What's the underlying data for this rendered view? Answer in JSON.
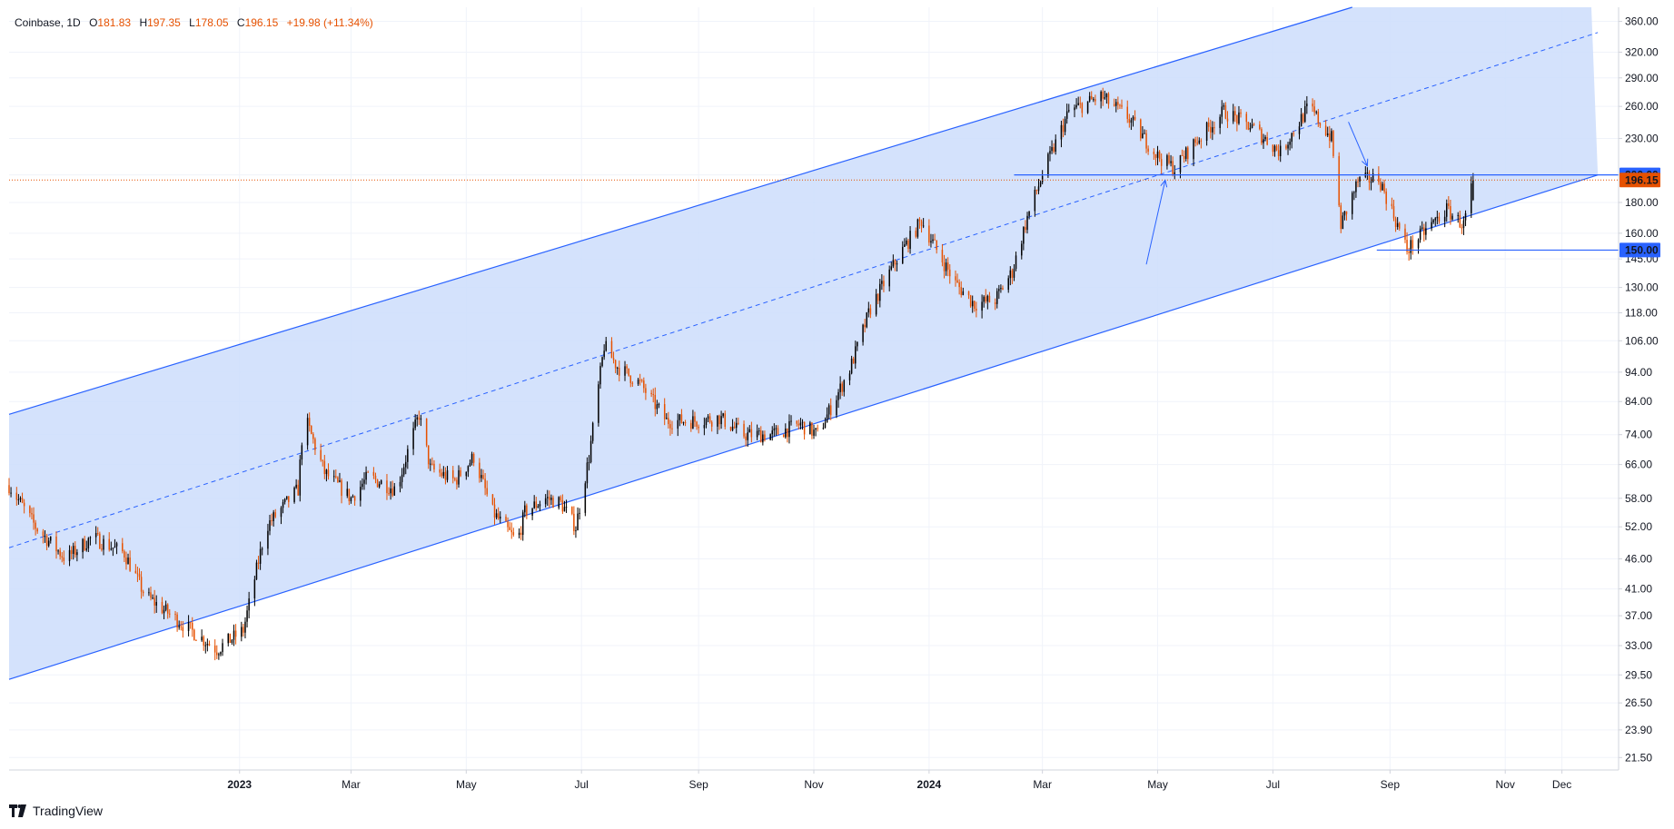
{
  "header": {
    "symbol": "Coinbase",
    "interval": "1D",
    "o_label": "O",
    "o_value": "181.83",
    "h_label": "H",
    "h_value": "197.35",
    "l_label": "L",
    "l_value": "178.05",
    "c_label": "C",
    "c_value": "196.15",
    "change": "+19.98 (+11.34%)"
  },
  "brand": {
    "name": "TradingView"
  },
  "colors": {
    "up": "#000000",
    "down": "#e65100",
    "channel_fill": "#cdddfb",
    "channel_line": "#2962ff",
    "price_line": "#e65100",
    "text": "#131722"
  },
  "chart_data": {
    "type": "candlestick",
    "scale": "log",
    "ylim": [
      20.5,
      380
    ],
    "xlim": [
      "2022-09-01",
      "2024-12-31"
    ],
    "y_ticks": [
      "360.00",
      "320.00",
      "290.00",
      "260.00",
      "230.00",
      "200.00",
      "180.00",
      "160.00",
      "145.00",
      "130.00",
      "118.00",
      "106.00",
      "94.00",
      "84.00",
      "74.00",
      "66.00",
      "58.00",
      "52.00",
      "46.00",
      "41.00",
      "37.00",
      "33.00",
      "29.50",
      "26.50",
      "23.90",
      "21.50"
    ],
    "x_ticks": [
      {
        "label": "2023",
        "date": "2023-01-01",
        "bold": true
      },
      {
        "label": "Mar",
        "date": "2023-03-01"
      },
      {
        "label": "May",
        "date": "2023-05-01"
      },
      {
        "label": "Jul",
        "date": "2023-07-01"
      },
      {
        "label": "Sep",
        "date": "2023-09-01"
      },
      {
        "label": "Nov",
        "date": "2023-11-01"
      },
      {
        "label": "2024",
        "date": "2024-01-01",
        "bold": true
      },
      {
        "label": "Mar",
        "date": "2024-03-01"
      },
      {
        "label": "May",
        "date": "2024-05-01"
      },
      {
        "label": "Jul",
        "date": "2024-07-01"
      },
      {
        "label": "Sep",
        "date": "2024-09-01"
      },
      {
        "label": "Nov",
        "date": "2024-11-01"
      },
      {
        "label": "Dec",
        "date": "2024-12-01"
      }
    ],
    "price_path": [
      [
        "2022-09-01",
        61
      ],
      [
        "2022-09-15",
        52
      ],
      [
        "2022-10-01",
        46
      ],
      [
        "2022-10-15",
        50
      ],
      [
        "2022-11-01",
        47
      ],
      [
        "2022-11-12",
        40
      ],
      [
        "2022-12-01",
        36
      ],
      [
        "2022-12-20",
        32.5
      ],
      [
        "2023-01-03",
        35
      ],
      [
        "2023-01-15",
        52
      ],
      [
        "2023-02-01",
        60
      ],
      [
        "2023-02-04",
        80
      ],
      [
        "2023-02-15",
        64
      ],
      [
        "2023-03-01",
        58
      ],
      [
        "2023-03-10",
        63
      ],
      [
        "2023-03-25",
        60
      ],
      [
        "2023-04-06",
        80
      ],
      [
        "2023-04-12",
        65
      ],
      [
        "2023-04-25",
        62
      ],
      [
        "2023-05-05",
        68
      ],
      [
        "2023-05-15",
        55
      ],
      [
        "2023-05-28",
        49
      ],
      [
        "2023-06-01",
        55
      ],
      [
        "2023-06-12",
        58
      ],
      [
        "2023-06-20",
        57
      ],
      [
        "2023-06-28",
        52
      ],
      [
        "2023-07-05",
        68
      ],
      [
        "2023-07-13",
        104
      ],
      [
        "2023-07-20",
        96
      ],
      [
        "2023-08-01",
        90
      ],
      [
        "2023-08-15",
        78
      ],
      [
        "2023-09-01",
        78
      ],
      [
        "2023-09-12",
        79
      ],
      [
        "2023-09-25",
        74
      ],
      [
        "2023-10-10",
        74
      ],
      [
        "2023-10-25",
        77
      ],
      [
        "2023-11-03",
        74
      ],
      [
        "2023-11-20",
        95
      ],
      [
        "2023-12-01",
        120
      ],
      [
        "2023-12-15",
        145
      ],
      [
        "2023-12-28",
        168
      ],
      [
        "2024-01-05",
        150
      ],
      [
        "2024-01-15",
        132
      ],
      [
        "2024-01-25",
        122
      ],
      [
        "2024-02-05",
        124
      ],
      [
        "2024-02-14",
        138
      ],
      [
        "2024-02-22",
        170
      ],
      [
        "2024-03-01",
        200
      ],
      [
        "2024-03-15",
        255
      ],
      [
        "2024-04-01",
        270
      ],
      [
        "2024-04-15",
        250
      ],
      [
        "2024-05-01",
        215
      ],
      [
        "2024-05-10",
        205
      ],
      [
        "2024-05-20",
        225
      ],
      [
        "2024-06-05",
        255
      ],
      [
        "2024-06-20",
        240
      ],
      [
        "2024-07-05",
        218
      ],
      [
        "2024-07-20",
        260
      ],
      [
        "2024-08-01",
        230
      ],
      [
        "2024-08-06",
        165
      ],
      [
        "2024-08-15",
        195
      ],
      [
        "2024-08-26",
        198
      ],
      [
        "2024-09-05",
        165
      ],
      [
        "2024-09-10",
        150
      ],
      [
        "2024-09-20",
        162
      ],
      [
        "2024-10-01",
        175
      ],
      [
        "2024-10-10",
        165
      ],
      [
        "2024-10-15",
        196.15
      ]
    ],
    "last_close": 196.15,
    "drawings": [
      {
        "type": "channel_upper",
        "from": [
          "2022-09-01",
          80
        ],
        "to": [
          "2024-08-12",
          380
        ]
      },
      {
        "type": "channel_lower",
        "from": [
          "2022-09-01",
          29
        ],
        "to": [
          "2024-12-20",
          200
        ]
      },
      {
        "type": "channel_mid",
        "from": [
          "2022-09-01",
          48
        ],
        "to": [
          "2024-12-20",
          345
        ]
      },
      {
        "type": "horizontal",
        "from": [
          "2024-02-15",
          200
        ],
        "to": [
          "2024-12-31",
          200
        ],
        "label": "200.00"
      },
      {
        "type": "horizontal",
        "from": [
          "2024-08-25",
          150
        ],
        "to": [
          "2024-12-31",
          150
        ],
        "label": "150.00"
      },
      {
        "type": "arrow",
        "from": [
          "2024-04-25",
          142
        ],
        "to": [
          "2024-05-05",
          196
        ]
      },
      {
        "type": "arrow",
        "from": [
          "2024-08-10",
          245
        ],
        "to": [
          "2024-08-20",
          207
        ]
      }
    ],
    "price_labels": [
      {
        "value": 200,
        "text": "200.00",
        "color": "#2962ff"
      },
      {
        "value": 196.15,
        "text": "196.15",
        "color": "#e65100"
      },
      {
        "value": 150,
        "text": "150.00",
        "color": "#2962ff"
      }
    ]
  }
}
